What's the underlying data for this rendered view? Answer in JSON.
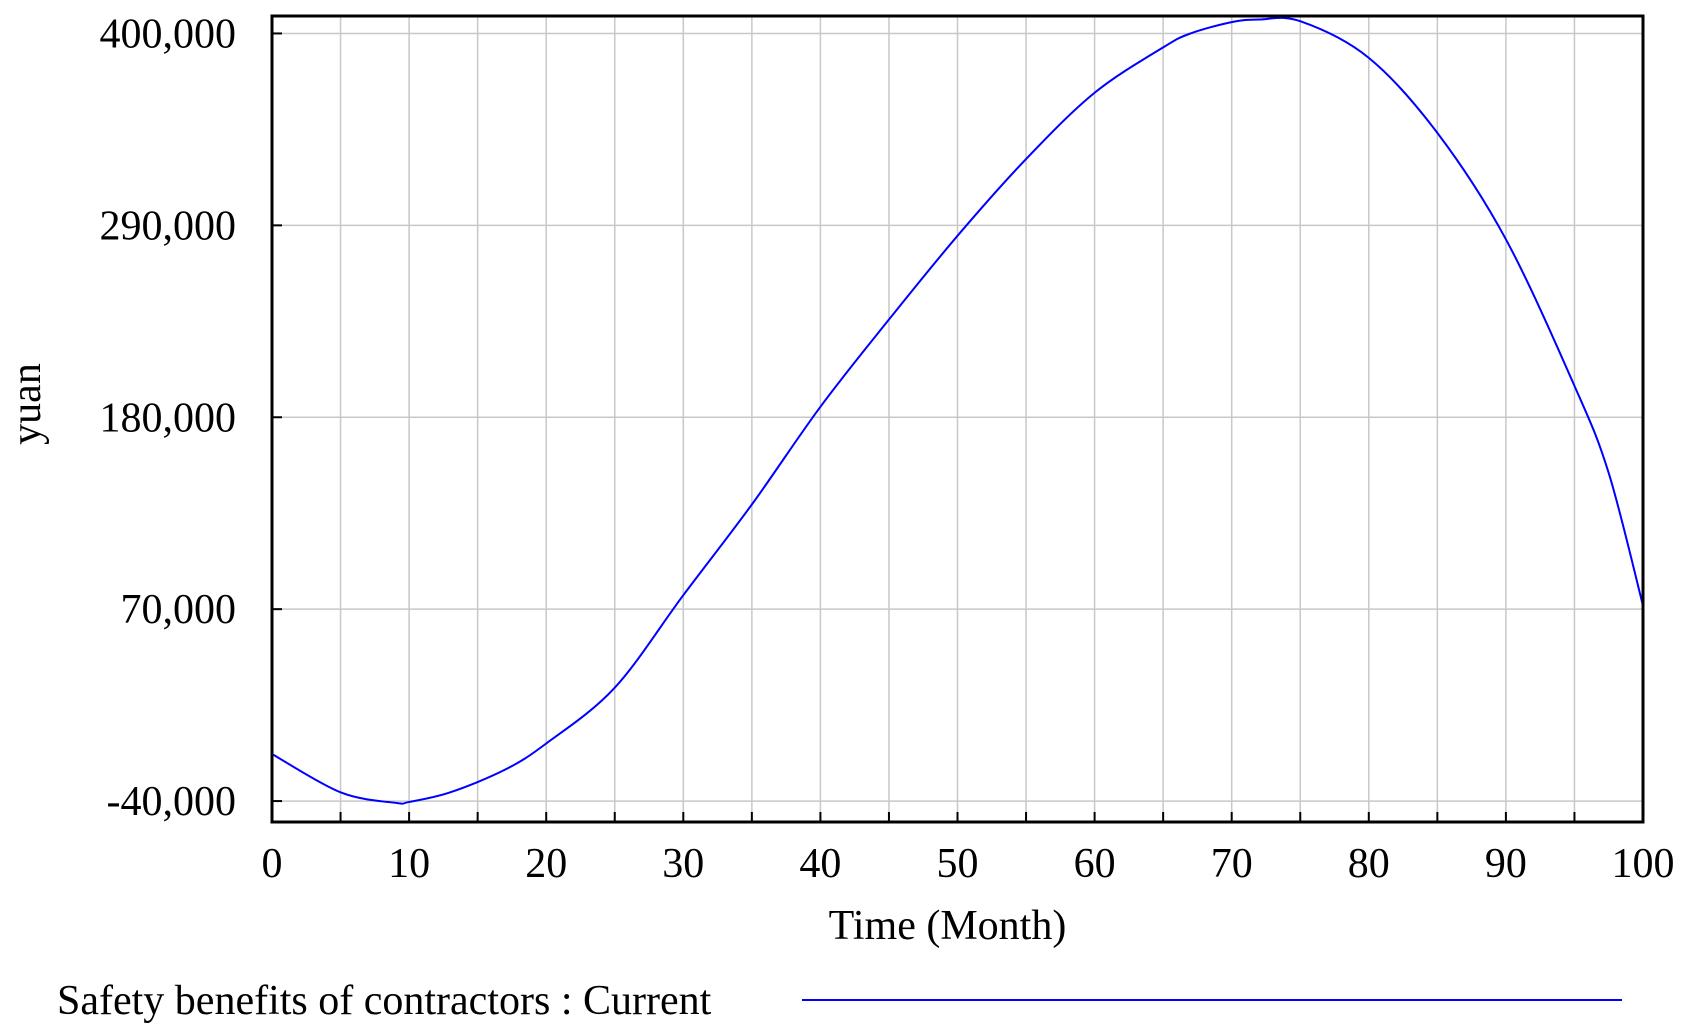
{
  "chart_data": {
    "type": "line",
    "title": "",
    "xlabel": "Time (Month)",
    "ylabel": "yuan",
    "xlim": [
      0,
      100
    ],
    "ylim": [
      -52000,
      410000
    ],
    "x_ticks": [
      0,
      10,
      20,
      30,
      40,
      50,
      60,
      70,
      80,
      90,
      100
    ],
    "y_ticks": [
      -40000,
      70000,
      180000,
      290000,
      400000
    ],
    "x_tick_labels": [
      "0",
      "10",
      "20",
      "30",
      "40",
      "50",
      "60",
      "70",
      "80",
      "90",
      "100"
    ],
    "y_tick_labels": [
      "-40,000",
      "70,000",
      "180,000",
      "290,000",
      "400,000"
    ],
    "x_grid_step": 5,
    "grid": true,
    "legend_position": "bottom",
    "series": [
      {
        "name": "Safety benefits of contractors : Current",
        "color": "#0000ff",
        "x": [
          0,
          5,
          9,
          10,
          13,
          17,
          20,
          25,
          30,
          35,
          40,
          45,
          50,
          55,
          60,
          65,
          67,
          70,
          72,
          75,
          80,
          85,
          90,
          95,
          97.5,
          100
        ],
        "y": [
          -13000,
          -35000,
          -41000,
          -40500,
          -35000,
          -22000,
          -7000,
          25000,
          78000,
          130000,
          186000,
          236000,
          284000,
          328000,
          366000,
          392000,
          400000,
          406500,
          408000,
          407000,
          386000,
          343000,
          282000,
          198000,
          148000,
          72000
        ]
      }
    ]
  },
  "colors": {
    "background": "#ffffff",
    "grid": "#c8c8c8",
    "frame": "#000000",
    "line": "#0000ff"
  }
}
